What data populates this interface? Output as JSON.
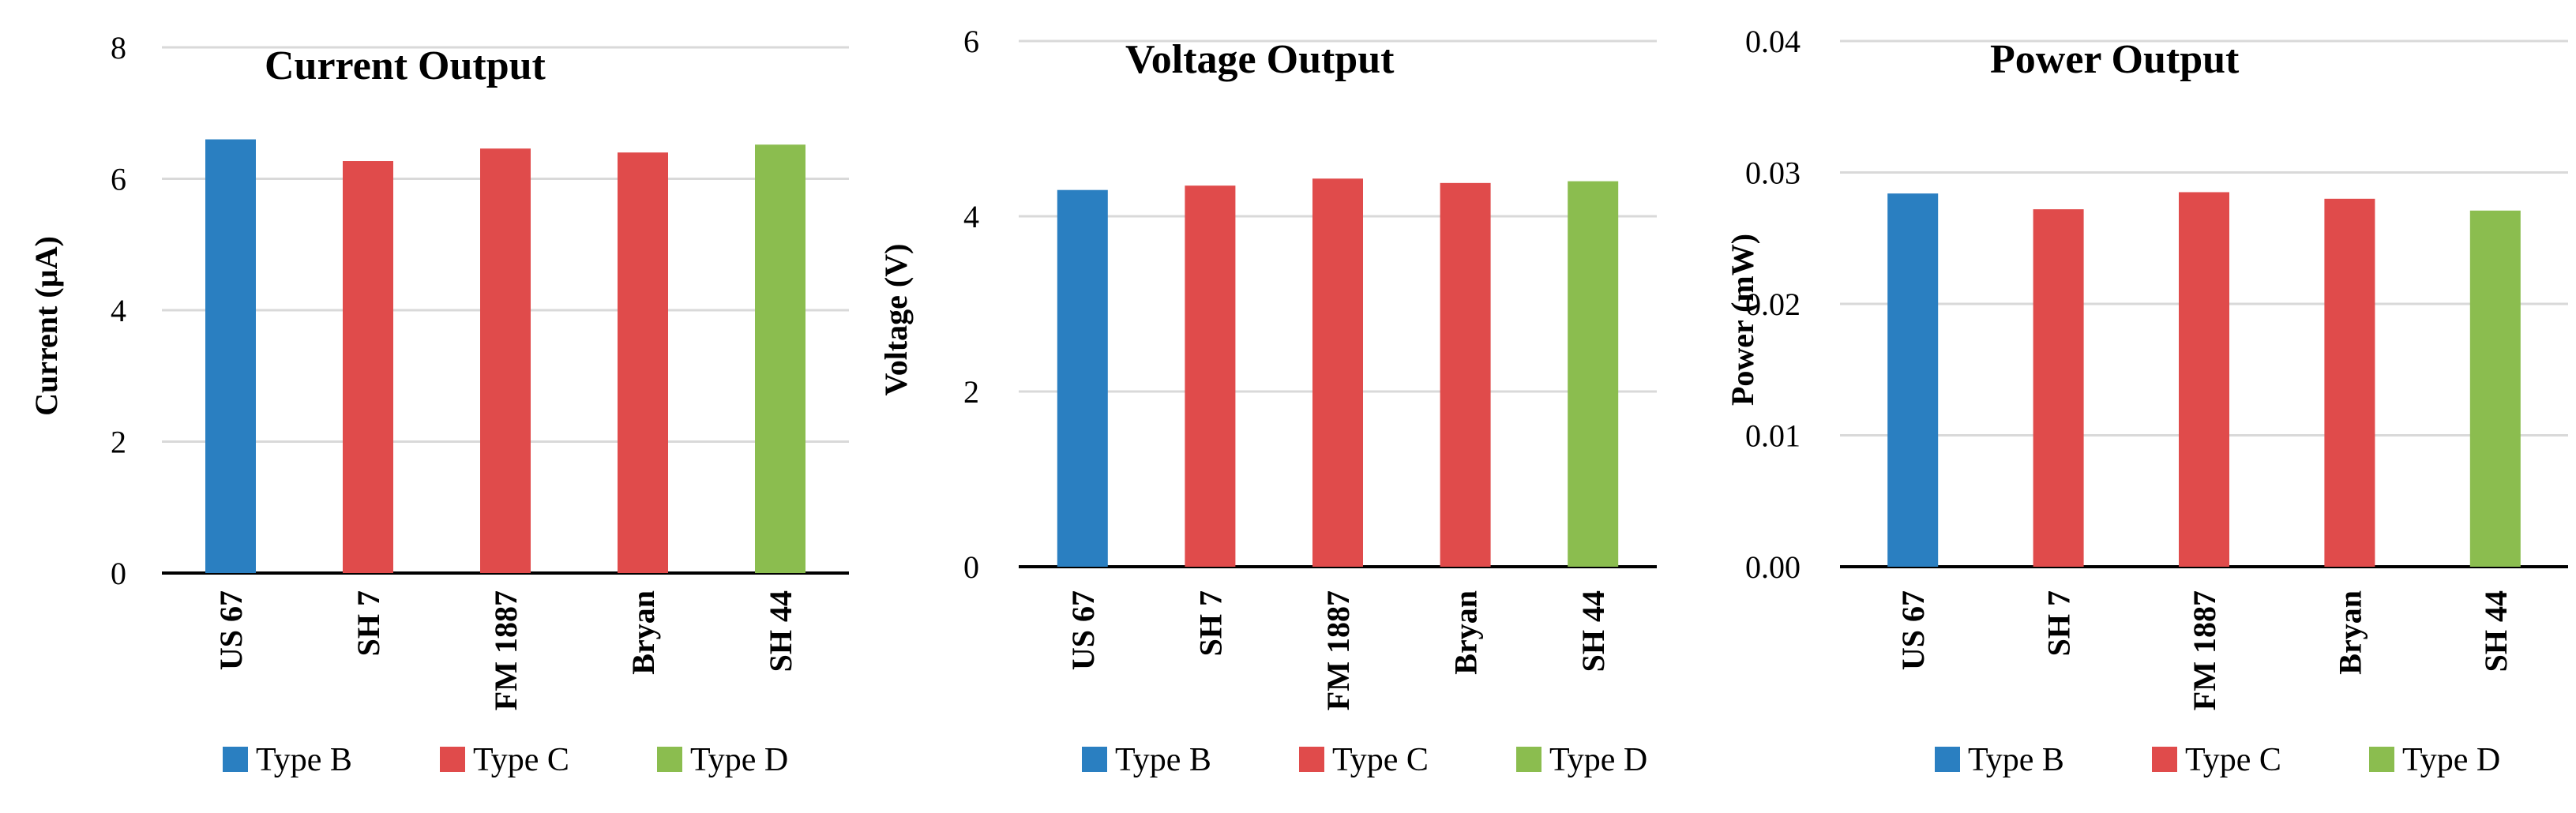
{
  "legend": {
    "items": [
      {
        "label": "Type B",
        "color": "#2a7fc1"
      },
      {
        "label": "Type C",
        "color": "#e04b4b"
      },
      {
        "label": "Type D",
        "color": "#8bbd4f"
      }
    ]
  },
  "chart_data": [
    {
      "type": "bar",
      "title": "Current Output",
      "ylabel": "Current (µA)",
      "xlabel": "",
      "ylim": [
        0,
        8
      ],
      "yticks": [
        "0",
        "2",
        "4",
        "6",
        "8"
      ],
      "grid": true,
      "legend_position": "bottom",
      "categories": [
        "US 67",
        "SH 7",
        "FM 1887",
        "Bryan",
        "SH 44"
      ],
      "values": [
        6.6,
        6.27,
        6.46,
        6.4,
        6.52
      ],
      "bar_types": [
        "Type B",
        "Type C",
        "Type C",
        "Type C",
        "Type D"
      ]
    },
    {
      "type": "bar",
      "title": "Voltage Output",
      "ylabel": "Voltage (V)",
      "xlabel": "",
      "ylim": [
        0,
        6
      ],
      "yticks": [
        "0",
        "2",
        "4",
        "6"
      ],
      "grid": true,
      "legend_position": "bottom",
      "categories": [
        "US 67",
        "SH 7",
        "FM 1887",
        "Bryan",
        "SH 44"
      ],
      "values": [
        4.3,
        4.35,
        4.43,
        4.38,
        4.4
      ],
      "bar_types": [
        "Type B",
        "Type C",
        "Type C",
        "Type C",
        "Type D"
      ]
    },
    {
      "type": "bar",
      "title": "Power Output",
      "ylabel": "Power (mW)",
      "xlabel": "",
      "ylim": [
        0,
        0.04
      ],
      "yticks": [
        "0.00",
        "0.01",
        "0.02",
        "0.03",
        "0.04"
      ],
      "grid": true,
      "legend_position": "bottom",
      "categories": [
        "US 67",
        "SH 7",
        "FM 1887",
        "Bryan",
        "SH 44"
      ],
      "values": [
        0.0284,
        0.0272,
        0.0285,
        0.028,
        0.0271
      ],
      "bar_types": [
        "Type B",
        "Type C",
        "Type C",
        "Type C",
        "Type D"
      ]
    }
  ]
}
